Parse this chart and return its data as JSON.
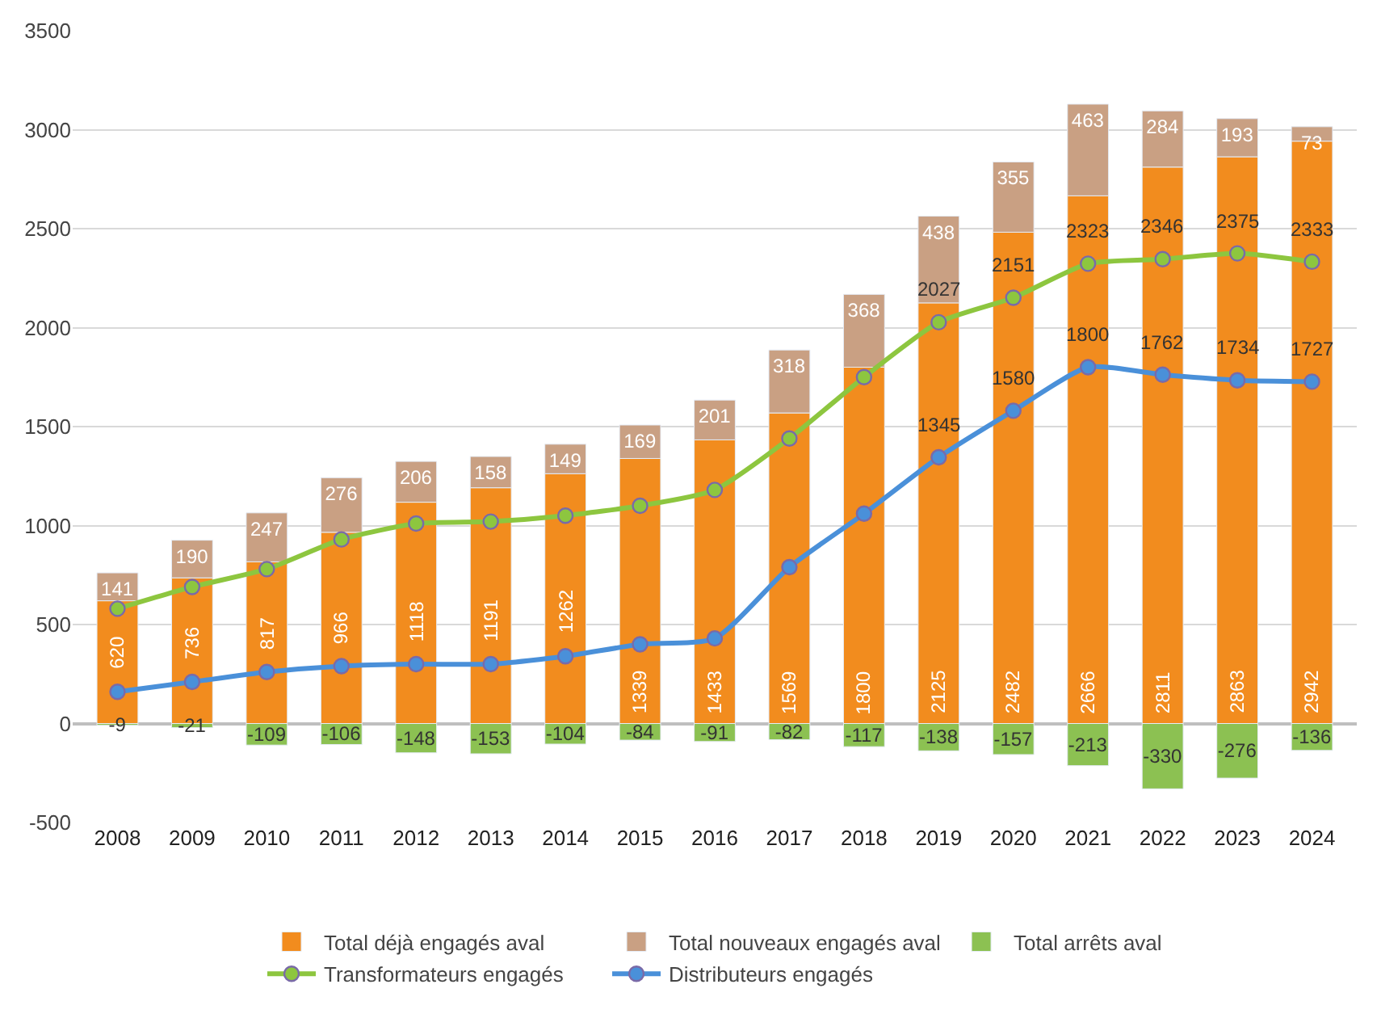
{
  "chart_data": {
    "type": "bar",
    "stacked": true,
    "categories": [
      "2008",
      "2009",
      "2010",
      "2011",
      "2012",
      "2013",
      "2014",
      "2015",
      "2016",
      "2017",
      "2018",
      "2019",
      "2020",
      "2021",
      "2022",
      "2023",
      "2024"
    ],
    "ylim": [
      -500,
      3500
    ],
    "yticks": [
      -500,
      0,
      500,
      1000,
      1500,
      2000,
      2500,
      3000,
      3500
    ],
    "grid": "y",
    "legend": "bottom",
    "data_labels": true,
    "series": [
      {
        "name": "Total déjà engagés aval",
        "color": "#f28c1e",
        "values": [
          620,
          736,
          817,
          966,
          1118,
          1191,
          1262,
          1339,
          1433,
          1569,
          1800,
          2125,
          2482,
          2666,
          2811,
          2863,
          2942
        ]
      },
      {
        "name": "Total nouveaux engagés aval",
        "color": "#c9a083",
        "values": [
          141,
          190,
          247,
          276,
          206,
          158,
          149,
          169,
          201,
          318,
          368,
          438,
          355,
          463,
          284,
          193,
          73
        ]
      },
      {
        "name": "Total arrêts aval",
        "color": "#8cc152",
        "values": [
          -9,
          -21,
          -109,
          -106,
          -148,
          -153,
          -104,
          -84,
          -91,
          -82,
          -117,
          -138,
          -157,
          -213,
          -330,
          -276,
          -136
        ]
      },
      {
        "name": "Transformateurs engagés",
        "type": "line",
        "color": "#8dc63f",
        "marker": "circle",
        "values": [
          580,
          690,
          780,
          930,
          1010,
          1020,
          1050,
          1100,
          1180,
          1440,
          1750,
          2027,
          2151,
          2323,
          2346,
          2375,
          2333
        ],
        "value_labels": [
          null,
          null,
          null,
          null,
          null,
          null,
          null,
          null,
          null,
          null,
          null,
          "2027",
          "2151",
          "2323",
          "2346",
          "2375",
          "2333"
        ]
      },
      {
        "name": "Distributeurs engagés",
        "type": "line",
        "color": "#4a90d9",
        "marker": "circle",
        "values": [
          160,
          210,
          260,
          290,
          300,
          300,
          340,
          400,
          430,
          790,
          1060,
          1345,
          1580,
          1800,
          1762,
          1734,
          1727
        ],
        "value_labels": [
          null,
          null,
          null,
          null,
          null,
          null,
          null,
          null,
          null,
          null,
          null,
          "1345",
          "1580",
          "1800",
          "1762",
          "1734",
          "1727"
        ]
      }
    ]
  }
}
